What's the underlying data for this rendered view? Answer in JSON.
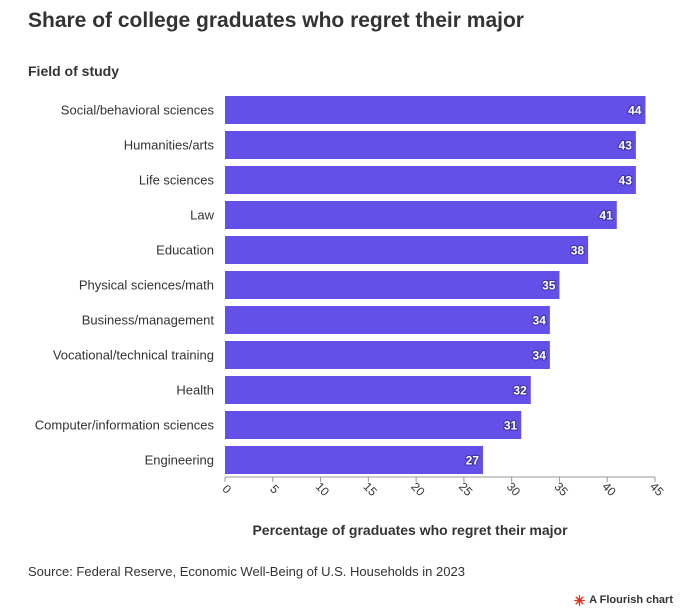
{
  "title": "Share of college graduates who regret their major",
  "source": "Source: Federal Reserve, Economic Well-Being of U.S. Households in 2023",
  "credit": "A Flourish chart",
  "colors": {
    "bar": "#6350e8",
    "axis": "#999999",
    "text": "#333333",
    "credit_icon": "#e0301e"
  },
  "chart_data": {
    "type": "bar",
    "orientation": "horizontal",
    "categories": [
      "Social/behavioral sciences",
      "Humanities/arts",
      "Life sciences",
      "Law",
      "Education",
      "Physical sciences/math",
      "Business/management",
      "Vocational/technical training",
      "Health",
      "Computer/information sciences",
      "Engineering"
    ],
    "values": [
      44,
      43,
      43,
      41,
      38,
      35,
      34,
      34,
      32,
      31,
      27
    ],
    "xlabel": "Percentage of graduates who regret their major",
    "ylabel": "Field of study",
    "xlim": [
      0,
      45
    ],
    "xticks": [
      0,
      5,
      10,
      15,
      20,
      25,
      30,
      35,
      40,
      45
    ],
    "grid": false,
    "data_labels": true
  }
}
